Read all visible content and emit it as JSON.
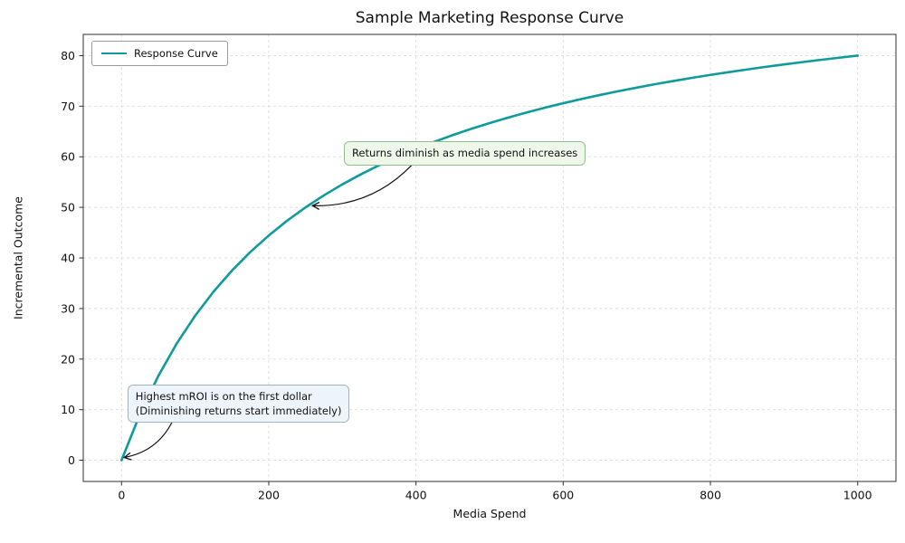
{
  "chart_data": {
    "type": "line",
    "title": "Sample Marketing Response Curve",
    "xlabel": "Media Spend",
    "ylabel": "Incremental Outcome",
    "grid": true,
    "xlim": [
      -52,
      1052
    ],
    "ylim": [
      -4.2,
      84.2
    ],
    "xticks": [
      0,
      200,
      400,
      600,
      800,
      1000
    ],
    "yticks": [
      0,
      10,
      20,
      30,
      40,
      50,
      60,
      70,
      80
    ],
    "legend": {
      "position": "upper-left",
      "entries": [
        {
          "label": "Response Curve",
          "color": "#0f9b9b"
        }
      ]
    },
    "series": [
      {
        "name": "Response Curve",
        "color": "#0f9b9b",
        "line_width": 2.6,
        "x": [
          0,
          25,
          50,
          75,
          100,
          125,
          150,
          175,
          200,
          225,
          250,
          275,
          300,
          325,
          350,
          375,
          400,
          425,
          450,
          475,
          500,
          525,
          550,
          575,
          600,
          625,
          650,
          675,
          700,
          725,
          750,
          775,
          800,
          825,
          850,
          875,
          900,
          925,
          950,
          975,
          1000
        ],
        "y": [
          0,
          9.09,
          16.67,
          23.08,
          28.57,
          33.33,
          37.5,
          41.18,
          44.44,
          47.37,
          50.0,
          52.38,
          54.55,
          56.52,
          58.33,
          60.0,
          61.54,
          62.96,
          64.29,
          65.52,
          66.67,
          67.74,
          68.75,
          69.7,
          70.59,
          71.43,
          72.22,
          72.97,
          73.68,
          74.36,
          75.0,
          75.61,
          76.19,
          76.74,
          77.27,
          77.78,
          78.26,
          78.72,
          79.17,
          79.59,
          80.0
        ]
      }
    ],
    "annotations": [
      {
        "text": "Returns diminish as media spend increases",
        "box_fill": "#eef7e9",
        "box_border": "#93bd8e",
        "box_xy": [
          302,
          63
        ],
        "arrow_to": [
          252,
          50.5
        ],
        "tip_offset": [
          6,
          1
        ],
        "start_frac": 0.28,
        "bend": 26
      },
      {
        "text_lines": [
          "Highest mROI is on the first dollar",
          "(Diminishing returns start immediately)"
        ],
        "box_fill": "#edf4fc",
        "box_border": "#9db4c8",
        "box_xy": [
          8,
          15
        ],
        "arrow_to": [
          0,
          0
        ],
        "tip_offset": [
          3,
          -3
        ],
        "start_frac": 0.2,
        "bend": 16
      }
    ],
    "colors": {
      "grid": "#dcdcdc",
      "spine": "#2f2f2f",
      "tick_label": "#111111",
      "arrow": "#111111"
    }
  }
}
